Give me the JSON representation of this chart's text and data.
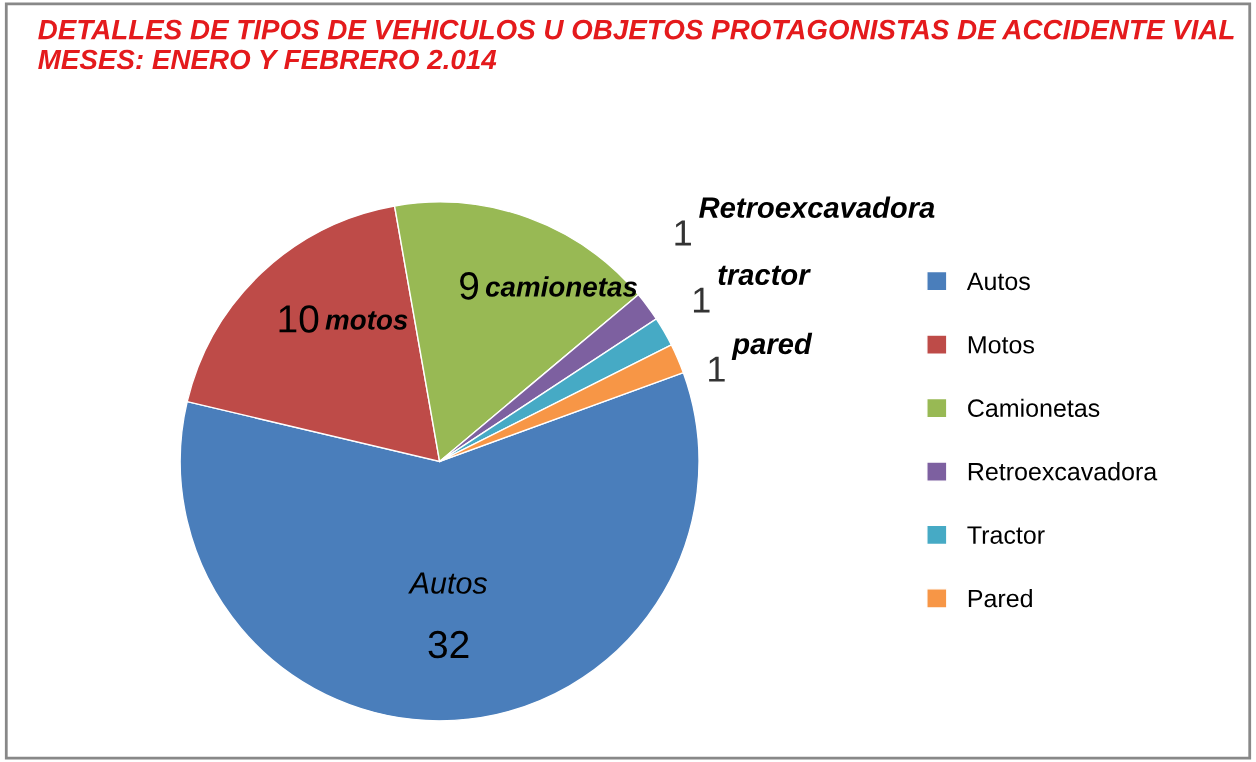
{
  "chart_data": {
    "type": "pie",
    "title": "DETALLES DE TIPOS DE VEHICULOS U OBJETOS PROTAGONISTAS DE ACCIDENTE VIAL MESES: ENERO Y FEBRERO 2.014",
    "categories": [
      "Autos",
      "Motos",
      "Camionetas",
      "Retroexcavadora",
      "Tractor",
      "Pared"
    ],
    "values": [
      32,
      10,
      9,
      1,
      1,
      1
    ],
    "colors": [
      "#4a7ebb",
      "#be4b48",
      "#98b954",
      "#7d60a0",
      "#46aac5",
      "#f79646"
    ],
    "data_labels": true,
    "annotations": [
      "Autos",
      "motos",
      "camionetas",
      "Retroexcavadora",
      "tractor",
      "pared"
    ],
    "legend": "right"
  }
}
